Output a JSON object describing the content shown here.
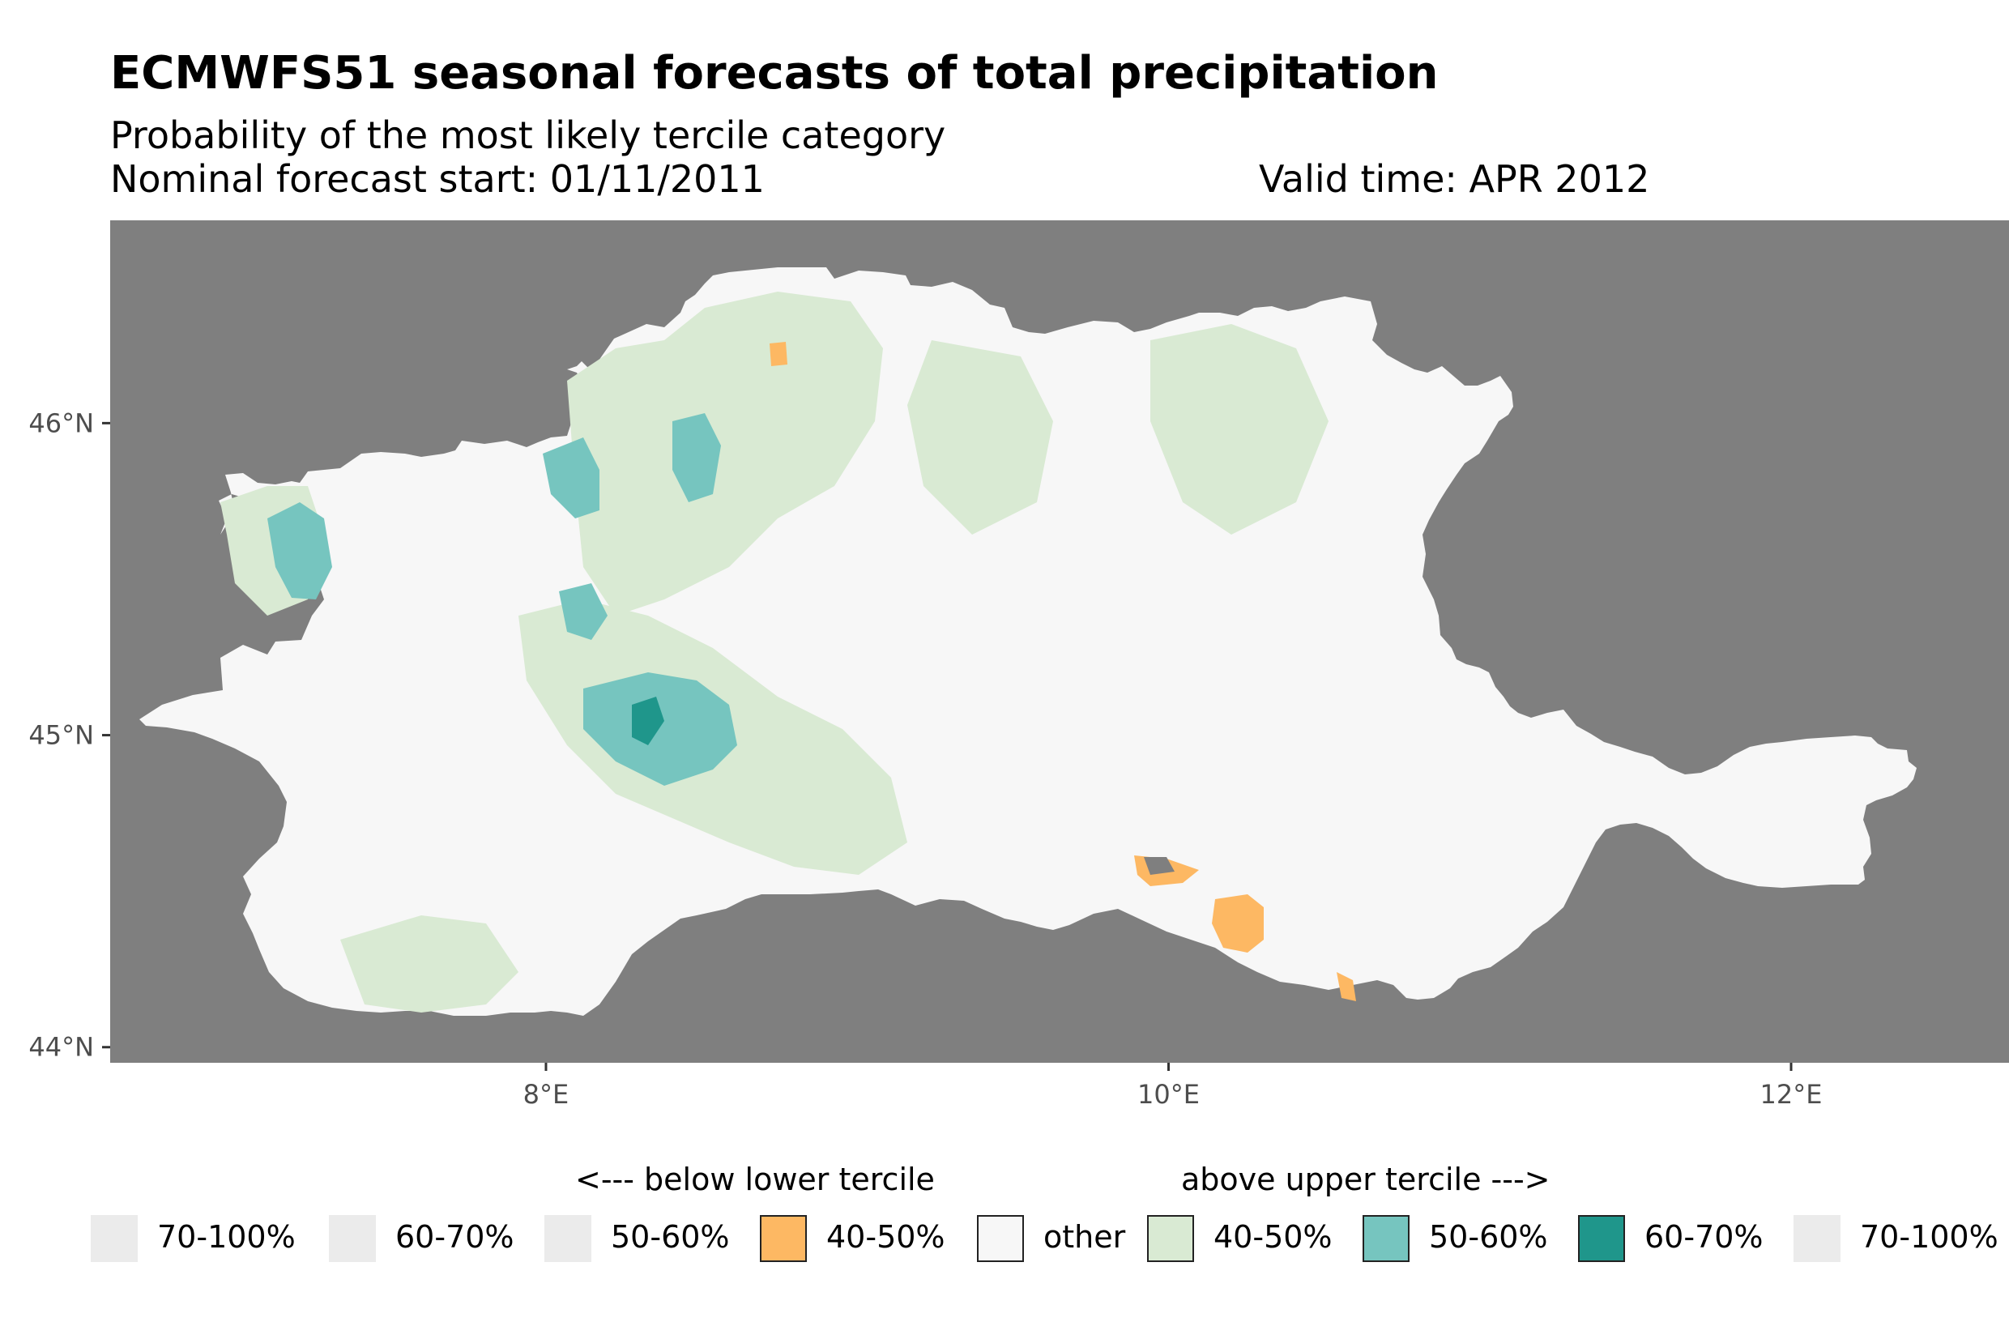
{
  "title": "ECMWFS51 seasonal forecasts of total precipitation",
  "subtitle": "Probability of the most likely tercile category",
  "forecast_start": "Nominal forecast start: 01/11/2011",
  "valid_time": "Valid time: APR 2012",
  "map": {
    "background_color": "#7f7f7f",
    "land_base_color": "#f7f7f7",
    "lon_range": [
      6.6,
      12.7
    ],
    "lat_range": [
      43.95,
      46.65
    ],
    "x_ticks": [
      {
        "value": 8,
        "label": "8°E"
      },
      {
        "value": 10,
        "label": "10°E"
      },
      {
        "value": 12,
        "label": "12°E"
      }
    ],
    "y_ticks": [
      {
        "value": 46,
        "label": "46°N"
      },
      {
        "value": 45,
        "label": "45°N"
      },
      {
        "value": 44,
        "label": "44°N"
      }
    ]
  },
  "legend": {
    "below_label": "<--- below lower tercile",
    "above_label": "above upper tercile --->",
    "items": [
      {
        "label": "70-100%",
        "color": "#ebebeb",
        "side": "below"
      },
      {
        "label": "60-70%",
        "color": "#ebebeb",
        "side": "below"
      },
      {
        "label": "50-60%",
        "color": "#ebebeb",
        "side": "below"
      },
      {
        "label": "40-50%",
        "color": "#fdb863",
        "side": "below"
      },
      {
        "label": "other",
        "color": "#f7f7f7",
        "side": "neutral"
      },
      {
        "label": "40-50%",
        "color": "#d9ead3",
        "side": "above"
      },
      {
        "label": "50-60%",
        "color": "#76c5bf",
        "side": "above"
      },
      {
        "label": "60-70%",
        "color": "#1f968b",
        "side": "above"
      },
      {
        "label": "70-100%",
        "color": "#ebebeb",
        "side": "above"
      }
    ]
  }
}
